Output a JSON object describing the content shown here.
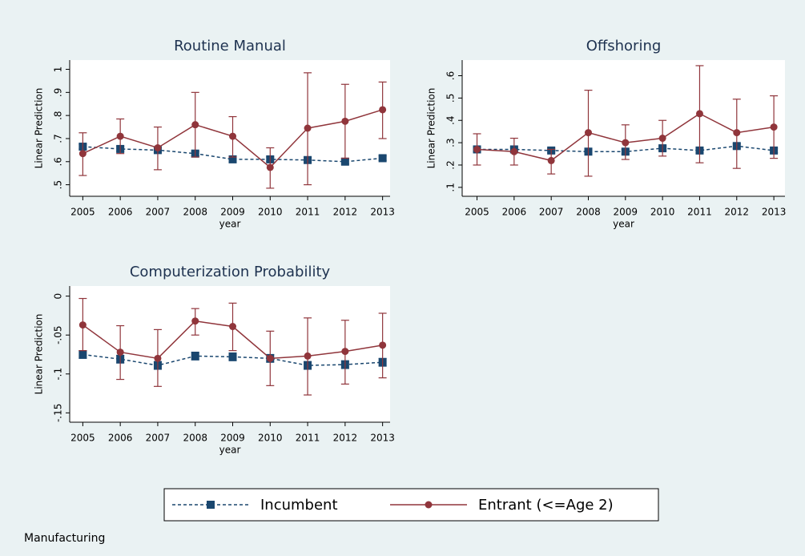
{
  "chart_data": [
    {
      "type": "line",
      "title": "Routine Manual",
      "ylabel": "Linear Prediction",
      "xlabel": "year",
      "x": [
        2005,
        2006,
        2007,
        2008,
        2009,
        2010,
        2011,
        2012,
        2013
      ],
      "xlim": [
        2004.65,
        2013.2
      ],
      "xticks": [
        2005,
        2006,
        2007,
        2008,
        2009,
        2010,
        2011,
        2012,
        2013
      ],
      "ylim": [
        0.45,
        1.04
      ],
      "yticks": [
        {
          "value": 0.5,
          "label": ".5"
        },
        {
          "value": 0.6,
          "label": ".6"
        },
        {
          "value": 0.7,
          "label": ".7"
        },
        {
          "value": 0.8,
          "label": ".8"
        },
        {
          "value": 0.9,
          "label": ".9"
        },
        1
      ],
      "series": [
        {
          "name": "Incumbent",
          "color": "#1a476f",
          "values": [
            0.665,
            0.655,
            0.65,
            0.635,
            0.61,
            0.61,
            0.607,
            0.6,
            0.615
          ],
          "lower": [
            0.655,
            0.645,
            0.64,
            0.625,
            0.6,
            0.6,
            0.597,
            0.59,
            0.605
          ],
          "upper": [
            0.675,
            0.665,
            0.66,
            0.645,
            0.62,
            0.62,
            0.617,
            0.61,
            0.625
          ]
        },
        {
          "name": "Entrant (<=Age 2)",
          "color": "#90353b",
          "values": [
            0.635,
            0.71,
            0.66,
            0.76,
            0.71,
            0.575,
            0.745,
            0.775,
            0.825
          ],
          "lower": [
            0.54,
            0.635,
            0.565,
            0.62,
            0.62,
            0.485,
            0.5,
            0.615,
            0.7
          ],
          "upper": [
            0.725,
            0.785,
            0.75,
            0.9,
            0.795,
            0.66,
            0.985,
            0.935,
            0.945
          ]
        }
      ]
    },
    {
      "type": "line",
      "title": "Offshoring",
      "ylabel": "Linear Prediction",
      "xlabel": "year",
      "x": [
        2005,
        2006,
        2007,
        2008,
        2009,
        2010,
        2011,
        2012,
        2013
      ],
      "xlim": [
        2004.6,
        2013.3
      ],
      "xticks": [
        2005,
        2006,
        2007,
        2008,
        2009,
        2010,
        2011,
        2012,
        2013
      ],
      "ylim": [
        0.06,
        0.67
      ],
      "yticks": [
        {
          "value": 0.1,
          "label": ".1"
        },
        {
          "value": 0.2,
          "label": ".2"
        },
        {
          "value": 0.3,
          "label": ".3"
        },
        {
          "value": 0.4,
          "label": ".4"
        },
        {
          "value": 0.5,
          "label": ".5"
        },
        {
          "value": 0.6,
          "label": ".6"
        }
      ],
      "series": [
        {
          "values": [
            0.27,
            0.27,
            0.265,
            0.26,
            0.26,
            0.275,
            0.265,
            0.285,
            0.265
          ],
          "lower": [
            0.26,
            0.26,
            0.255,
            0.25,
            0.25,
            0.265,
            0.255,
            0.275,
            0.255
          ],
          "upper": [
            0.28,
            0.28,
            0.275,
            0.27,
            0.27,
            0.285,
            0.275,
            0.295,
            0.275
          ]
        },
        {
          "values": [
            0.27,
            0.26,
            0.22,
            0.345,
            0.3,
            0.32,
            0.43,
            0.345,
            0.37
          ],
          "lower": [
            0.2,
            0.2,
            0.16,
            0.15,
            0.225,
            0.24,
            0.21,
            0.185,
            0.23
          ],
          "upper": [
            0.34,
            0.32,
            0.27,
            0.535,
            0.38,
            0.4,
            0.645,
            0.495,
            0.51
          ]
        }
      ]
    },
    {
      "type": "line",
      "title": "Computerization Probability",
      "ylabel": "Linear Prediction",
      "xlabel": "year",
      "x": [
        2005,
        2006,
        2007,
        2008,
        2009,
        2010,
        2011,
        2012,
        2013
      ],
      "xlim": [
        2004.65,
        2013.2
      ],
      "xticks": [
        2005,
        2006,
        2007,
        2008,
        2009,
        2010,
        2011,
        2012,
        2013
      ],
      "ylim": [
        -0.162,
        0.013
      ],
      "yticks": [
        {
          "value": -0.15,
          "label": "-.15"
        },
        {
          "value": -0.1,
          "label": "-.1"
        },
        {
          "value": -0.05,
          "label": "-.05"
        },
        0
      ],
      "series": [
        {
          "values": [
            -0.075,
            -0.081,
            -0.089,
            -0.077,
            -0.078,
            -0.08,
            -0.089,
            -0.088,
            -0.085
          ],
          "lower": [
            -0.08,
            -0.086,
            -0.094,
            -0.082,
            -0.083,
            -0.085,
            -0.094,
            -0.093,
            -0.09
          ],
          "upper": [
            -0.07,
            -0.076,
            -0.084,
            -0.072,
            -0.073,
            -0.075,
            -0.084,
            -0.083,
            -0.08
          ]
        },
        {
          "values": [
            -0.037,
            -0.072,
            -0.08,
            -0.032,
            -0.039,
            -0.08,
            -0.077,
            -0.071,
            -0.063
          ],
          "lower": [
            -0.07,
            -0.107,
            -0.116,
            -0.05,
            -0.07,
            -0.115,
            -0.127,
            -0.113,
            -0.105
          ],
          "upper": [
            -0.003,
            -0.038,
            -0.043,
            -0.016,
            -0.009,
            -0.045,
            -0.028,
            -0.031,
            -0.022
          ]
        }
      ]
    }
  ],
  "note": "Manufacturing"
}
